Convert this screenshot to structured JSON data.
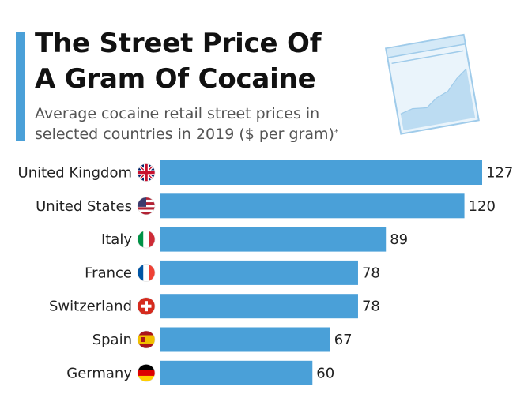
{
  "header": {
    "title_line1": "The Street Price Of",
    "title_line2": "A Gram Of Cocaine",
    "subtitle_line1": "Average cocaine retail street prices in",
    "subtitle_line2": "selected countries in 2019 ($ per gram)",
    "footnote_marker": "*"
  },
  "colors": {
    "accent": "#4aa0d8",
    "bar": "#4aa0d8",
    "illustration": "#9fcbea"
  },
  "icons": [
    "bag-icon",
    "uk-flag-icon",
    "us-flag-icon",
    "italy-flag-icon",
    "france-flag-icon",
    "switzerland-flag-icon",
    "spain-flag-icon",
    "germany-flag-icon"
  ],
  "chart_data": {
    "type": "bar",
    "orientation": "horizontal",
    "title": "The Street Price Of A Gram Of Cocaine",
    "subtitle": "Average cocaine retail street prices in selected countries in 2019 ($ per gram)*",
    "categories": [
      "United Kingdom",
      "United States",
      "Italy",
      "France",
      "Switzerland",
      "Spain",
      "Germany"
    ],
    "values": [
      127,
      120,
      89,
      78,
      78,
      67,
      60
    ],
    "flags": [
      "uk",
      "us",
      "italy",
      "france",
      "switzerland",
      "spain",
      "germany"
    ],
    "xlim": [
      0,
      127
    ],
    "grid": false,
    "legend": "none"
  }
}
